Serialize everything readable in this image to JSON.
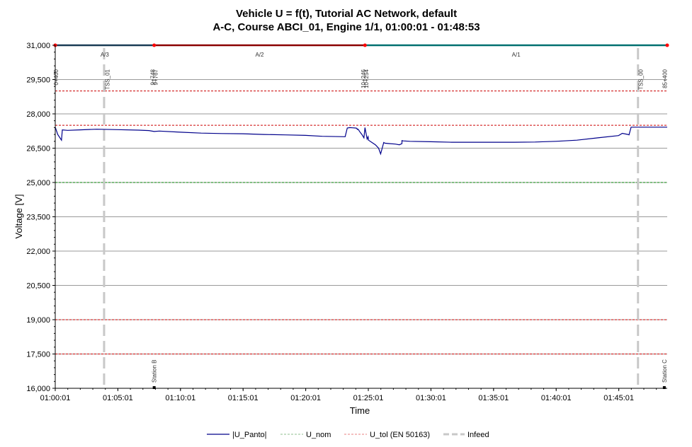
{
  "chart_data": {
    "type": "line",
    "title": "Vehicle U = f(t),  Tutorial AC Network, default",
    "subtitle": "A-C, Course ABCI_01, Engine 1/1, 01:00:01 - 01:48:53",
    "xlabel": "Time",
    "ylabel": "Voltage [V]",
    "xlim_seconds": [
      3601,
      6533
    ],
    "ylim": [
      16000,
      31000
    ],
    "yticks": [
      16000,
      17500,
      19000,
      20500,
      22000,
      23500,
      25000,
      26500,
      28000,
      29500,
      31000
    ],
    "ytick_labels": [
      "16,000",
      "17,500",
      "19,000",
      "20,500",
      "22,000",
      "23,500",
      "25,000",
      "26,500",
      "28,000",
      "29,500",
      "31,000"
    ],
    "xticks_seconds": [
      3601,
      3901,
      4201,
      4501,
      4801,
      5101,
      5401,
      5701,
      6001,
      6301
    ],
    "xtick_labels": [
      "01:00:01",
      "01:05:01",
      "01:10:01",
      "01:15:01",
      "01:20:01",
      "01:25:01",
      "01:30:01",
      "01:35:01",
      "01:40:01",
      "01:45:01"
    ],
    "grid": true,
    "legend_position": "bottom",
    "series": [
      {
        "name": "|U_Panto|",
        "color": "#00008b",
        "style": "solid",
        "x": [
          3601,
          3613,
          3631,
          3635,
          3660,
          3720,
          3800,
          3900,
          4000,
          4050,
          4075,
          4100,
          4200,
          4300,
          4400,
          4500,
          4600,
          4700,
          4800,
          4880,
          4990,
          5000,
          5012,
          5025,
          5040,
          5046,
          5048,
          5052,
          5060,
          5070,
          5080,
          5085,
          5095,
          5100,
          5102,
          5135,
          5150,
          5160,
          5175,
          5180,
          5200,
          5230,
          5250,
          5262,
          5262,
          5268,
          5300,
          5400,
          5500,
          5600,
          5700,
          5800,
          5900,
          6000,
          6100,
          6200,
          6300,
          6318,
          6345,
          6350,
          6360,
          6533
        ],
        "y": [
          27420,
          27100,
          26850,
          27300,
          27280,
          27300,
          27330,
          27310,
          27290,
          27270,
          27230,
          27250,
          27200,
          27160,
          27140,
          27130,
          27100,
          27080,
          27060,
          27020,
          27000,
          27380,
          27400,
          27390,
          27380,
          27370,
          27320,
          27330,
          27220,
          27100,
          26950,
          27400,
          26900,
          27000,
          26850,
          26650,
          26500,
          26250,
          26750,
          26720,
          26700,
          26680,
          26650,
          26700,
          26830,
          26820,
          26800,
          26780,
          26760,
          26760,
          26760,
          26760,
          26770,
          26800,
          26850,
          26950,
          27050,
          27150,
          27100,
          27080,
          27420,
          27420
        ]
      },
      {
        "name": "U_nom",
        "color": "#008000",
        "style": "dashed",
        "value": 25000
      },
      {
        "name": "U_tol (EN 50163)",
        "color": "#cc0000",
        "style": "dashed",
        "values": [
          29000,
          27500,
          19000,
          17500
        ]
      },
      {
        "name": "Infeed",
        "color": "#c8c8c8",
        "style": "dashed-thick",
        "x_seconds": [
          3835,
          6393
        ]
      }
    ],
    "top_markers": {
      "y": 31000,
      "points_seconds": [
        3601,
        4075,
        5085,
        6533
      ],
      "segments": [
        {
          "from": 3601,
          "to": 4075,
          "color": "#1a3c55"
        },
        {
          "from": 4075,
          "to": 5085,
          "color": "#8b0000"
        },
        {
          "from": 5085,
          "to": 6533,
          "color": "#007070"
        }
      ],
      "sections": [
        {
          "label": "A/3",
          "at": 3838
        },
        {
          "label": "A/2",
          "at": 4580
        },
        {
          "label": "A/1",
          "at": 5809
        }
      ],
      "position_labels": [
        {
          "text": "0+400",
          "at": 3604
        },
        {
          "text": "TSS_01",
          "at": 3851
        },
        {
          "text": "9+748",
          "at": 4067
        },
        {
          "text": "9+767",
          "at": 4081
        },
        {
          "text": "10+246",
          "at": 5078
        },
        {
          "text": "10+254",
          "at": 5091
        },
        {
          "text": "TSS_00",
          "at": 6406
        },
        {
          "text": "85+400",
          "at": 6521
        }
      ]
    },
    "station_labels": [
      {
        "text": "Station B",
        "at": 4075
      },
      {
        "text": "Station C",
        "at": 6519
      }
    ]
  }
}
